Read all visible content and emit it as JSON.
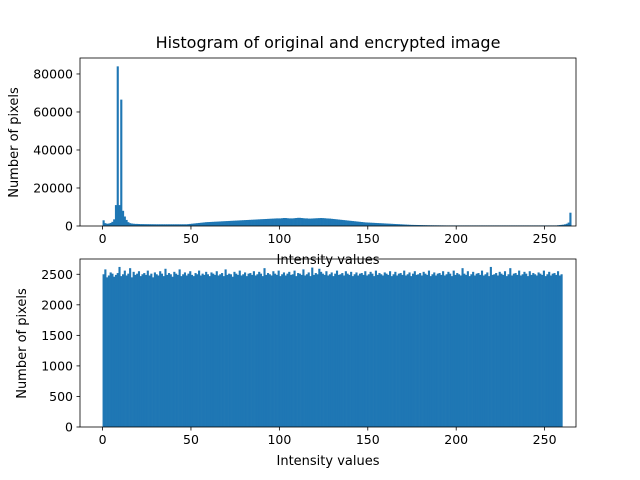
{
  "chart_data": [
    {
      "type": "bar",
      "title": "Histogram of original and encrypted image",
      "xlabel": "Intensity values",
      "ylabel": "Number of pixels",
      "xlim": [
        -12.75,
        267.75
      ],
      "ylim": [
        0,
        88400
      ],
      "xticks": [
        0,
        50,
        100,
        150,
        200,
        250
      ],
      "yticks": [
        0,
        20000,
        40000,
        60000,
        80000
      ],
      "bar_color": "#1f77b4",
      "grid": false,
      "bins": {
        "start": 0,
        "width": 1,
        "count": 255
      },
      "values": [
        3000,
        1500,
        1200,
        1300,
        1600,
        2200,
        3500,
        11000,
        84000,
        11000,
        66500,
        8000,
        5000,
        3200,
        2000,
        1500,
        1300,
        1200,
        1100,
        1100,
        1050,
        1000,
        1000,
        980,
        960,
        950,
        940,
        930,
        920,
        910,
        900,
        900,
        900,
        900,
        900,
        900,
        900,
        900,
        900,
        900,
        900,
        900,
        900,
        900,
        900,
        900,
        900,
        900,
        1000,
        1100,
        1200,
        1300,
        1400,
        1500,
        1600,
        1700,
        1800,
        1900,
        2000,
        2050,
        2100,
        2150,
        2200,
        2250,
        2300,
        2350,
        2400,
        2450,
        2500,
        2550,
        2600,
        2650,
        2700,
        2750,
        2800,
        2850,
        2900,
        2950,
        3000,
        3050,
        3100,
        3150,
        3200,
        3250,
        3300,
        3350,
        3400,
        3450,
        3500,
        3550,
        3600,
        3650,
        3700,
        3750,
        3800,
        3850,
        3900,
        3950,
        4000,
        4000,
        4000,
        4100,
        4200,
        4200,
        4100,
        4000,
        4000,
        4000,
        4100,
        4200,
        4300,
        4300,
        4200,
        4100,
        4000,
        4000,
        3900,
        3900,
        3950,
        4000,
        4050,
        4100,
        4150,
        4200,
        4150,
        4100,
        4000,
        3950,
        3900,
        3800,
        3700,
        3600,
        3500,
        3400,
        3300,
        3200,
        3100,
        3000,
        2900,
        2800,
        2700,
        2600,
        2500,
        2400,
        2300,
        2200,
        2100,
        2000,
        1900,
        1850,
        1800,
        1750,
        1700,
        1650,
        1600,
        1550,
        1500,
        1450,
        1400,
        1350,
        1300,
        1250,
        1200,
        1150,
        1100,
        1050,
        1000,
        950,
        900,
        850,
        800,
        750,
        700,
        650,
        600,
        580,
        560,
        540,
        520,
        500,
        480,
        460,
        440,
        420,
        400,
        390,
        380,
        370,
        360,
        350,
        340,
        330,
        320,
        310,
        300,
        300,
        300,
        300,
        300,
        300,
        300,
        300,
        300,
        300,
        300,
        300,
        300,
        300,
        300,
        300,
        300,
        300,
        300,
        300,
        300,
        300,
        300,
        300,
        300,
        300,
        300,
        300,
        300,
        300,
        300,
        300,
        300,
        300,
        300,
        300,
        300,
        300,
        300,
        300,
        300,
        300,
        300,
        300,
        300,
        300,
        300,
        300,
        300,
        300,
        300,
        300,
        300,
        300,
        300,
        300,
        300,
        300,
        300,
        300,
        300,
        300,
        300,
        400,
        500,
        600,
        700,
        900,
        1200,
        1800,
        7000
      ]
    },
    {
      "type": "bar",
      "title": "",
      "xlabel": "Intensity values",
      "ylabel": "Number of pixels",
      "xlim": [
        -12.75,
        267.75
      ],
      "ylim": [
        0,
        2750
      ],
      "xticks": [
        0,
        50,
        100,
        150,
        200,
        250
      ],
      "yticks": [
        0,
        500,
        1000,
        1500,
        2000,
        2500
      ],
      "bar_color": "#1f77b4",
      "grid": false,
      "bins": {
        "start": 0,
        "width": 1,
        "count": 255
      },
      "values": [
        2500,
        2580,
        2450,
        2480,
        2530,
        2510,
        2460,
        2490,
        2520,
        2620,
        2470,
        2500,
        2560,
        2480,
        2510,
        2600,
        2450,
        2540,
        2490,
        2510,
        2550,
        2470,
        2500,
        2520,
        2490,
        2560,
        2480,
        2510,
        2450,
        2530,
        2500,
        2480,
        2550,
        2510,
        2470,
        2590,
        2490,
        2520,
        2500,
        2460,
        2540,
        2510,
        2490,
        2580,
        2470,
        2500,
        2530,
        2480,
        2510,
        2550,
        2490,
        2470,
        2520,
        2500,
        2560,
        2480,
        2510,
        2490,
        2540,
        2500,
        2470,
        2530,
        2510,
        2490,
        2550,
        2480,
        2500,
        2520,
        2470,
        2580,
        2490,
        2510,
        2500,
        2460,
        2540,
        2510,
        2490,
        2560,
        2480,
        2500,
        2530,
        2470,
        2510,
        2520,
        2490,
        2550,
        2480,
        2500,
        2540,
        2510,
        2470,
        2600,
        2490,
        2520,
        2500,
        2480,
        2550,
        2510,
        2490,
        2560,
        2470,
        2500,
        2530,
        2480,
        2510,
        2540,
        2490,
        2500,
        2560,
        2470,
        2520,
        2510,
        2490,
        2580,
        2480,
        2500,
        2530,
        2470,
        2610,
        2490,
        2520,
        2500,
        2590,
        2540,
        2510,
        2490,
        2550,
        2480,
        2500,
        2530,
        2470,
        2510,
        2560,
        2490,
        2500,
        2520,
        2480,
        2550,
        2510,
        2490,
        2540,
        2470,
        2500,
        2530,
        2480,
        2510,
        2520,
        2490,
        2550,
        2480,
        2500,
        2540,
        2510,
        2470,
        2560,
        2490,
        2520,
        2500,
        2480,
        2530,
        2510,
        2490,
        2550,
        2470,
        2500,
        2540,
        2480,
        2510,
        2520,
        2490,
        2560,
        2480,
        2500,
        2530,
        2470,
        2510,
        2550,
        2490,
        2500,
        2520,
        2480,
        2540,
        2510,
        2490,
        2560,
        2470,
        2500,
        2530,
        2480,
        2510,
        2520,
        2490,
        2550,
        2480,
        2500,
        2540,
        2510,
        2470,
        2560,
        2490,
        2520,
        2500,
        2480,
        2600,
        2510,
        2490,
        2550,
        2470,
        2500,
        2540,
        2480,
        2510,
        2520,
        2490,
        2560,
        2480,
        2500,
        2530,
        2470,
        2620,
        2490,
        2500,
        2520,
        2480,
        2540,
        2510,
        2490,
        2550,
        2470,
        2500,
        2600,
        2480,
        2510,
        2520,
        2490,
        2560,
        2480,
        2500,
        2540,
        2510,
        2470,
        2550,
        2490,
        2520,
        2500,
        2480,
        2530,
        2510,
        2490,
        2560,
        2470,
        2500,
        2540,
        2480,
        2510,
        2520,
        2490,
        2550,
        2480,
        2500
      ]
    }
  ]
}
